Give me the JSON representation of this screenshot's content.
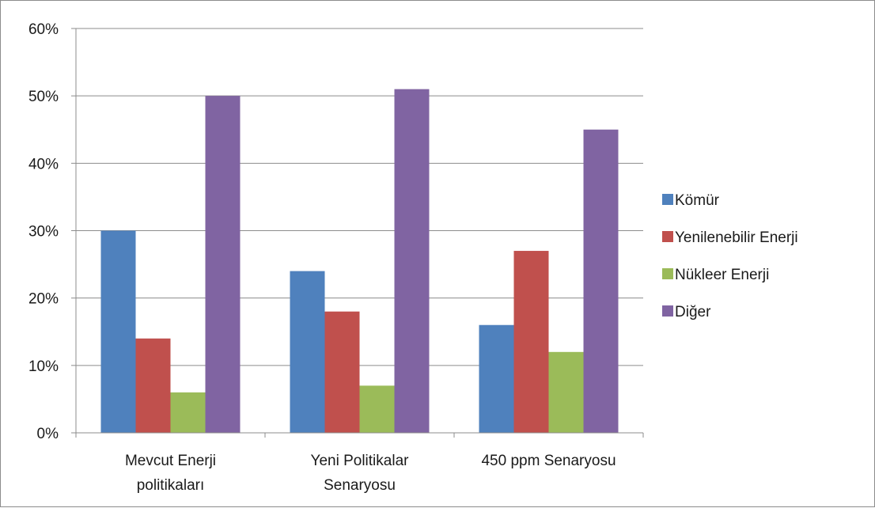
{
  "chart_data": {
    "type": "bar",
    "categories": [
      [
        "Mevcut Enerji",
        "politikaları"
      ],
      [
        "Yeni Politikalar",
        "Senaryosu"
      ],
      [
        "450 ppm Senaryosu"
      ]
    ],
    "series": [
      {
        "name": "Kömür",
        "color": "#4f81bd",
        "values": [
          0.3,
          0.24,
          0.16
        ]
      },
      {
        "name": "Yenilenebilir Enerji",
        "color": "#c0504d",
        "values": [
          0.14,
          0.18,
          0.27
        ]
      },
      {
        "name": "Nükleer Enerji",
        "color": "#9bbb59",
        "values": [
          0.06,
          0.07,
          0.12
        ]
      },
      {
        "name": "Diğer",
        "color": "#8064a2",
        "values": [
          0.5,
          0.51,
          0.45
        ]
      }
    ],
    "ylim": [
      0,
      0.6
    ],
    "yticks": [
      "0%",
      "10%",
      "20%",
      "30%",
      "40%",
      "50%",
      "60%"
    ],
    "grid": true,
    "legend_position": "right",
    "title": "",
    "xlabel": "",
    "ylabel": ""
  }
}
